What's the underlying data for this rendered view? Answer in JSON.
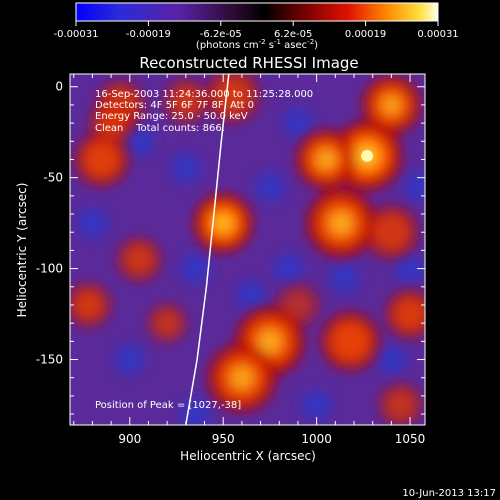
{
  "chart_data": {
    "type": "heatmap",
    "title": "Reconstructed RHESSI Image",
    "xlabel": "Heliocentric X (arcsec)",
    "ylabel": "Heliocentric Y (arcsec)",
    "xlim": [
      868,
      1058
    ],
    "ylim": [
      -186,
      7
    ],
    "xticks": [
      900,
      950,
      1000,
      1050
    ],
    "yticks": [
      0,
      -50,
      -100,
      -150
    ],
    "colorbar": {
      "min": -0.00031,
      "max": 0.00031,
      "ticks": [
        "-0.00031",
        "-0.00019",
        "-6.2e-05",
        "6.2e-05",
        "0.00019",
        "0.00031"
      ],
      "unit_prefix": "(photons cm",
      "unit_exp1": "-2",
      "unit_mid": " s",
      "unit_exp2": "-1",
      "unit_mid2": " asec",
      "unit_exp3": "-2",
      "unit_suffix": ")"
    },
    "annotations": [
      "16-Sep-2003 11:24:36.000 to 11:25:28.000",
      "Detectors: 4F 5F 6F 7F 8F, Att 0",
      "Energy Range: 25.0 - 50.0 keV",
      "Clean    Total counts: 866."
    ],
    "peak_label": "Position of Peak = [1027,-38]",
    "peak": [
      1027,
      -38
    ],
    "blobs": [
      {
        "x": 1027,
        "y": -38,
        "s": 14,
        "a": 1.0
      },
      {
        "x": 1040,
        "y": -10,
        "s": 12,
        "a": 0.75
      },
      {
        "x": 1005,
        "y": -40,
        "s": 12,
        "a": 0.8
      },
      {
        "x": 1013,
        "y": -75,
        "s": 14,
        "a": 0.8
      },
      {
        "x": 1040,
        "y": -80,
        "s": 11,
        "a": 0.55
      },
      {
        "x": 1050,
        "y": -125,
        "s": 10,
        "a": 0.6
      },
      {
        "x": 1018,
        "y": -140,
        "s": 12,
        "a": 0.7
      },
      {
        "x": 975,
        "y": -140,
        "s": 14,
        "a": 0.8
      },
      {
        "x": 960,
        "y": -160,
        "s": 14,
        "a": 0.75
      },
      {
        "x": 950,
        "y": -75,
        "s": 12,
        "a": 0.95
      },
      {
        "x": 955,
        "y": -5,
        "s": 11,
        "a": 0.55
      },
      {
        "x": 895,
        "y": -10,
        "s": 10,
        "a": 0.55
      },
      {
        "x": 885,
        "y": -40,
        "s": 11,
        "a": 0.65
      },
      {
        "x": 890,
        "y": -20,
        "s": 9,
        "a": 0.5
      },
      {
        "x": 930,
        "y": -8,
        "s": 9,
        "a": 0.5
      },
      {
        "x": 905,
        "y": -95,
        "s": 9,
        "a": 0.5
      },
      {
        "x": 878,
        "y": -120,
        "s": 9,
        "a": 0.55
      },
      {
        "x": 920,
        "y": -130,
        "s": 8,
        "a": 0.45
      },
      {
        "x": 1045,
        "y": -175,
        "s": 9,
        "a": 0.45
      },
      {
        "x": 990,
        "y": -120,
        "s": 9,
        "a": 0.35
      }
    ],
    "limb": [
      [
        930,
        -186
      ],
      [
        936,
        -150
      ],
      [
        941,
        -110
      ],
      [
        945,
        -70
      ],
      [
        949,
        -30
      ],
      [
        953,
        7
      ]
    ],
    "grid": false
  },
  "footer": {
    "date": "10-Jun-2013 13:17"
  }
}
